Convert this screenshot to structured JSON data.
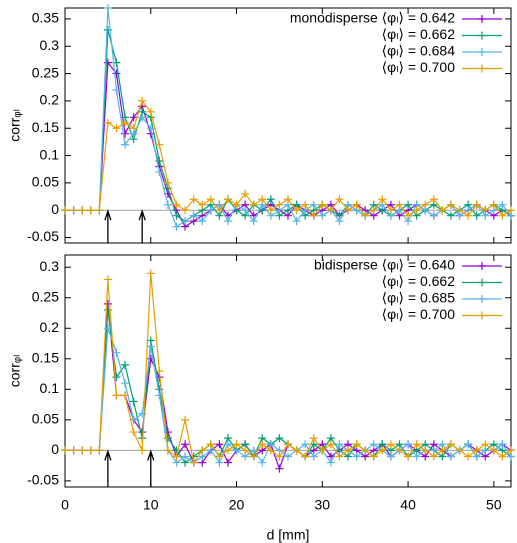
{
  "chart_data": [
    {
      "type": "line",
      "ylabel": "corrᵩₗ",
      "x": [
        0,
        1,
        2,
        3,
        4,
        5,
        6,
        7,
        8,
        9,
        10,
        11,
        12,
        13,
        14,
        15,
        16,
        17,
        18,
        19,
        20,
        21,
        22,
        23,
        24,
        25,
        26,
        27,
        28,
        29,
        30,
        31,
        32,
        33,
        34,
        35,
        36,
        37,
        38,
        39,
        40,
        41,
        42,
        43,
        44,
        45,
        46,
        47,
        48,
        49,
        50,
        51,
        52
      ],
      "xlim": [
        0,
        52
      ],
      "xticks": [
        0,
        10,
        20,
        30,
        40,
        50
      ],
      "ylim": [
        -0.06,
        0.37
      ],
      "yticks": [
        -0.05,
        0,
        0.05,
        0.1,
        0.15,
        0.2,
        0.25,
        0.3,
        0.35
      ],
      "arrows": [
        5,
        9
      ],
      "legend": "upper right",
      "series": [
        {
          "name": "monodisperse ⟨φₗ⟩ = 0.642",
          "color": "#9400d3",
          "values": [
            0,
            0,
            0,
            0,
            0,
            0.27,
            0.25,
            0.14,
            0.17,
            0.19,
            0.14,
            0.08,
            0.03,
            0,
            -0.03,
            -0.02,
            -0.01,
            0,
            0.01,
            -0.01,
            0,
            0.01,
            -0.01,
            0,
            0.01,
            0,
            -0.01,
            0.01,
            0,
            -0.01,
            0,
            0.01,
            -0.01,
            0,
            0.01,
            0,
            -0.01,
            0,
            0.01,
            -0.01,
            0,
            0.01,
            0,
            -0.01,
            0,
            0.01,
            -0.01,
            0,
            0.01,
            0,
            -0.01,
            0,
            -0.01
          ]
        },
        {
          "name": "⟨φₗ⟩ = 0.662",
          "color": "#009e73",
          "values": [
            0,
            0,
            0,
            0,
            0,
            0.33,
            0.27,
            0.17,
            0.13,
            0.18,
            0.17,
            0.09,
            0.04,
            -0.01,
            -0.02,
            -0.01,
            0,
            0.01,
            -0.01,
            0.02,
            0,
            -0.01,
            0.01,
            0,
            0.02,
            -0.01,
            0,
            0.01,
            -0.01,
            0,
            0.01,
            0,
            -0.01,
            0.01,
            0,
            -0.01,
            0.01,
            0,
            -0.01,
            0,
            0.01,
            -0.01,
            0,
            0.01,
            0,
            -0.01,
            0,
            0.01,
            -0.01,
            0,
            0.01,
            0,
            -0.01
          ]
        },
        {
          "name": "⟨φₗ⟩ = 0.684",
          "color": "#56b4e9",
          "values": [
            0,
            0,
            0,
            0,
            0,
            0.37,
            0.22,
            0.12,
            0.14,
            0.17,
            0.15,
            0.07,
            0.01,
            -0.03,
            -0.02,
            -0.01,
            -0.02,
            0,
            0.01,
            -0.02,
            0.01,
            0,
            -0.02,
            0.01,
            -0.01,
            0,
            0.01,
            -0.02,
            0,
            0.01,
            -0.01,
            0,
            -0.02,
            0.01,
            0,
            -0.01,
            0,
            0.01,
            -0.01,
            0,
            -0.02,
            0.01,
            0,
            -0.01,
            0,
            0.01,
            -0.01,
            0,
            0.01,
            -0.01,
            0,
            0.01,
            -0.01
          ]
        },
        {
          "name": "⟨φₗ⟩ = 0.700",
          "color": "#e69f00",
          "values": [
            0,
            0,
            0,
            0,
            0,
            0.16,
            0.15,
            0.16,
            0.15,
            0.2,
            0.18,
            0.12,
            0.05,
            0.01,
            0,
            0.02,
            0.01,
            0.02,
            0,
            0.02,
            0.01,
            0.03,
            0.01,
            0.02,
            0,
            0.01,
            0.02,
            0,
            0.01,
            -0.01,
            0.01,
            0,
            0.02,
            0,
            0.01,
            -0.01,
            0,
            0.02,
            0,
            0.01,
            -0.01,
            0,
            0.01,
            0.02,
            0,
            0.01,
            0,
            -0.01,
            0.01,
            0,
            0.01,
            -0.01,
            0
          ]
        }
      ]
    },
    {
      "type": "line",
      "ylabel": "corrᵩₗ",
      "xlabel": "d [mm]",
      "x": [
        0,
        1,
        2,
        3,
        4,
        5,
        6,
        7,
        8,
        9,
        10,
        11,
        12,
        13,
        14,
        15,
        16,
        17,
        18,
        19,
        20,
        21,
        22,
        23,
        24,
        25,
        26,
        27,
        28,
        29,
        30,
        31,
        32,
        33,
        34,
        35,
        36,
        37,
        38,
        39,
        40,
        41,
        42,
        43,
        44,
        45,
        46,
        47,
        48,
        49,
        50,
        51,
        52
      ],
      "xlim": [
        0,
        52
      ],
      "xticks": [
        0,
        10,
        20,
        30,
        40,
        50
      ],
      "ylim": [
        -0.06,
        0.32
      ],
      "yticks": [
        -0.05,
        0,
        0.05,
        0.1,
        0.15,
        0.2,
        0.25,
        0.3
      ],
      "arrows": [
        5,
        10
      ],
      "legend": "upper right",
      "series": [
        {
          "name": "bidisperse ⟨φₗ⟩ = 0.640",
          "color": "#9400d3",
          "values": [
            0,
            0,
            0,
            0,
            0,
            0.24,
            0.09,
            0.09,
            0.05,
            0.03,
            0.15,
            0.12,
            0.03,
            -0.01,
            0.01,
            -0.02,
            -0.02,
            0,
            0.01,
            -0.02,
            0,
            0.01,
            -0.01,
            0,
            0.01,
            -0.03,
            0.01,
            0,
            -0.01,
            0,
            0.01,
            -0.01,
            0,
            0.01,
            0,
            -0.01,
            0,
            0.01,
            -0.01,
            0,
            0.01,
            0,
            -0.01,
            0.01,
            0,
            -0.01,
            0,
            0.01,
            0,
            -0.01,
            0,
            0.01,
            0
          ]
        },
        {
          "name": "⟨φₗ⟩ = 0.662",
          "color": "#009e73",
          "values": [
            0,
            0,
            0,
            0,
            0,
            0.23,
            0.12,
            0.14,
            0.08,
            0.02,
            0.18,
            0.1,
            0.02,
            0,
            -0.02,
            -0.01,
            0,
            0.01,
            -0.01,
            0.02,
            0,
            0.01,
            -0.01,
            0.02,
            0.01,
            0.02,
            0.01,
            0,
            -0.01,
            0.01,
            0,
            0.02,
            0,
            -0.01,
            0.01,
            0,
            -0.01,
            0.01,
            0,
            0.01,
            -0.01,
            0,
            0.01,
            0,
            -0.01,
            0.01,
            0,
            0.01,
            -0.01,
            0,
            0.01,
            0,
            -0.01
          ]
        },
        {
          "name": "⟨φₗ⟩ = 0.685",
          "color": "#56b4e9",
          "values": [
            0,
            0,
            0,
            0,
            0,
            0.2,
            0.16,
            0.11,
            0.05,
            0.06,
            0.17,
            0.09,
            0,
            -0.02,
            -0.01,
            -0.02,
            -0.01,
            0,
            -0.02,
            0.01,
            0,
            -0.01,
            0,
            -0.02,
            0.01,
            0,
            -0.01,
            0,
            0.01,
            -0.01,
            0,
            -0.02,
            0.01,
            0,
            -0.01,
            0,
            0.01,
            0,
            -0.01,
            0,
            0.01,
            -0.01,
            0,
            0,
            0.01,
            -0.01,
            0,
            0.01,
            -0.01,
            0,
            0,
            0.01,
            -0.01
          ]
        },
        {
          "name": "⟨φₗ⟩ = 0.700",
          "color": "#e69f00",
          "values": [
            0,
            0,
            0,
            0,
            0,
            0.28,
            0.09,
            0.09,
            0.03,
            0,
            0.29,
            0.13,
            0,
            -0.01,
            0.05,
            -0.02,
            0,
            0.01,
            -0.01,
            0,
            0.01,
            0,
            -0.01,
            0.01,
            0,
            -0.01,
            0.01,
            0,
            -0.01,
            0.02,
            0,
            0.01,
            -0.01,
            0,
            0.01,
            0,
            -0.01,
            0,
            0.01,
            0,
            -0.01,
            0.01,
            0,
            -0.01,
            0,
            0.01,
            0,
            -0.01,
            0,
            0.01,
            0,
            -0.01,
            0
          ]
        }
      ]
    }
  ]
}
